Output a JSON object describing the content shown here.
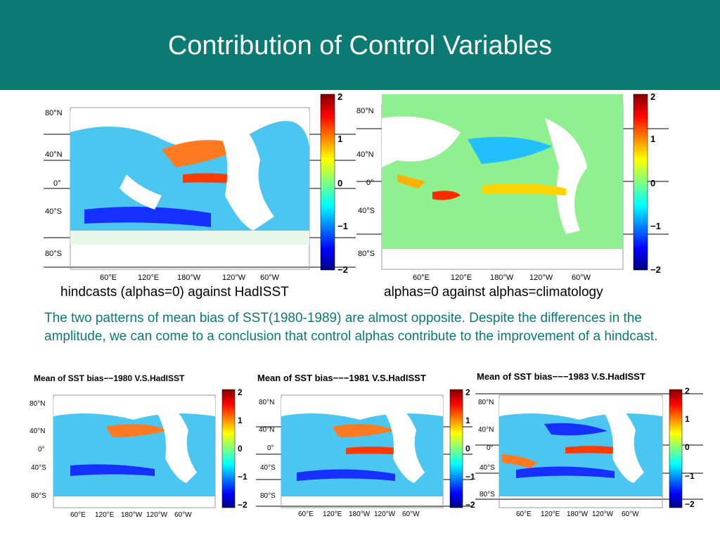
{
  "slide": {
    "title": "Contribution of Control Variables",
    "header_color": "#0a7a73",
    "text_color": "#0a7a73"
  },
  "top_maps": [
    {
      "caption": "hindcasts (alphas=0) against HadISST",
      "lat_labels": [
        "80°N",
        "40°N",
        "0°",
        "40°S",
        "80°S"
      ],
      "lon_labels": [
        "60°E",
        "120°E",
        "180°W",
        "120°W",
        "60°W"
      ],
      "colorbar_labels": [
        "2",
        "1",
        "0",
        "−1",
        "−2"
      ]
    },
    {
      "caption": "alphas=0 against alphas=climatology",
      "lat_labels": [
        "80°N",
        "40°N",
        "0°",
        "40°S",
        "80°S"
      ],
      "lon_labels": [
        "60°E",
        "120°E",
        "180°W",
        "120°W",
        "60°W"
      ],
      "colorbar_labels": [
        "2",
        "1",
        "0",
        "−1",
        "−2"
      ]
    }
  ],
  "paragraph": "The two patterns of mean bias of SST(1980-1989) are almost opposite. Despite the differences in the amplitude, we can come to a conclusion that control alphas contribute to the improvement of a hindcast.",
  "bottom_maps": [
    {
      "title": "Mean of SST bias−−1980 V.S.HadISST",
      "lat_labels": [
        "80°N",
        "40°N",
        "0°",
        "40°S",
        "80°S"
      ],
      "lon_labels": [
        "60°E",
        "120°E",
        "180°W",
        "120°W",
        "60°W"
      ],
      "colorbar_labels": [
        "2",
        "1",
        "0",
        "−1",
        "−2"
      ]
    },
    {
      "title": "Mean of SST bias−−−1981 V.S.HadISST",
      "lat_labels": [
        "80°N",
        "40°N",
        "0°",
        "40°S",
        "80°S"
      ],
      "lon_labels": [
        "60°E",
        "120°E",
        "180°W",
        "120°W",
        "60°W"
      ],
      "colorbar_labels": [
        "2",
        "1",
        "0",
        "−1",
        "−2"
      ]
    },
    {
      "title": "Mean of SST bias−−−1983 V.S.HadISST",
      "lat_labels": [
        "80°N",
        "40°N",
        "0°",
        "40°S",
        "80°S"
      ],
      "lon_labels": [
        "60°E",
        "120°E",
        "180°W",
        "120°W",
        "60°W"
      ],
      "colorbar_labels": [
        "2",
        "1",
        "0",
        "−1",
        "−2"
      ]
    }
  ]
}
